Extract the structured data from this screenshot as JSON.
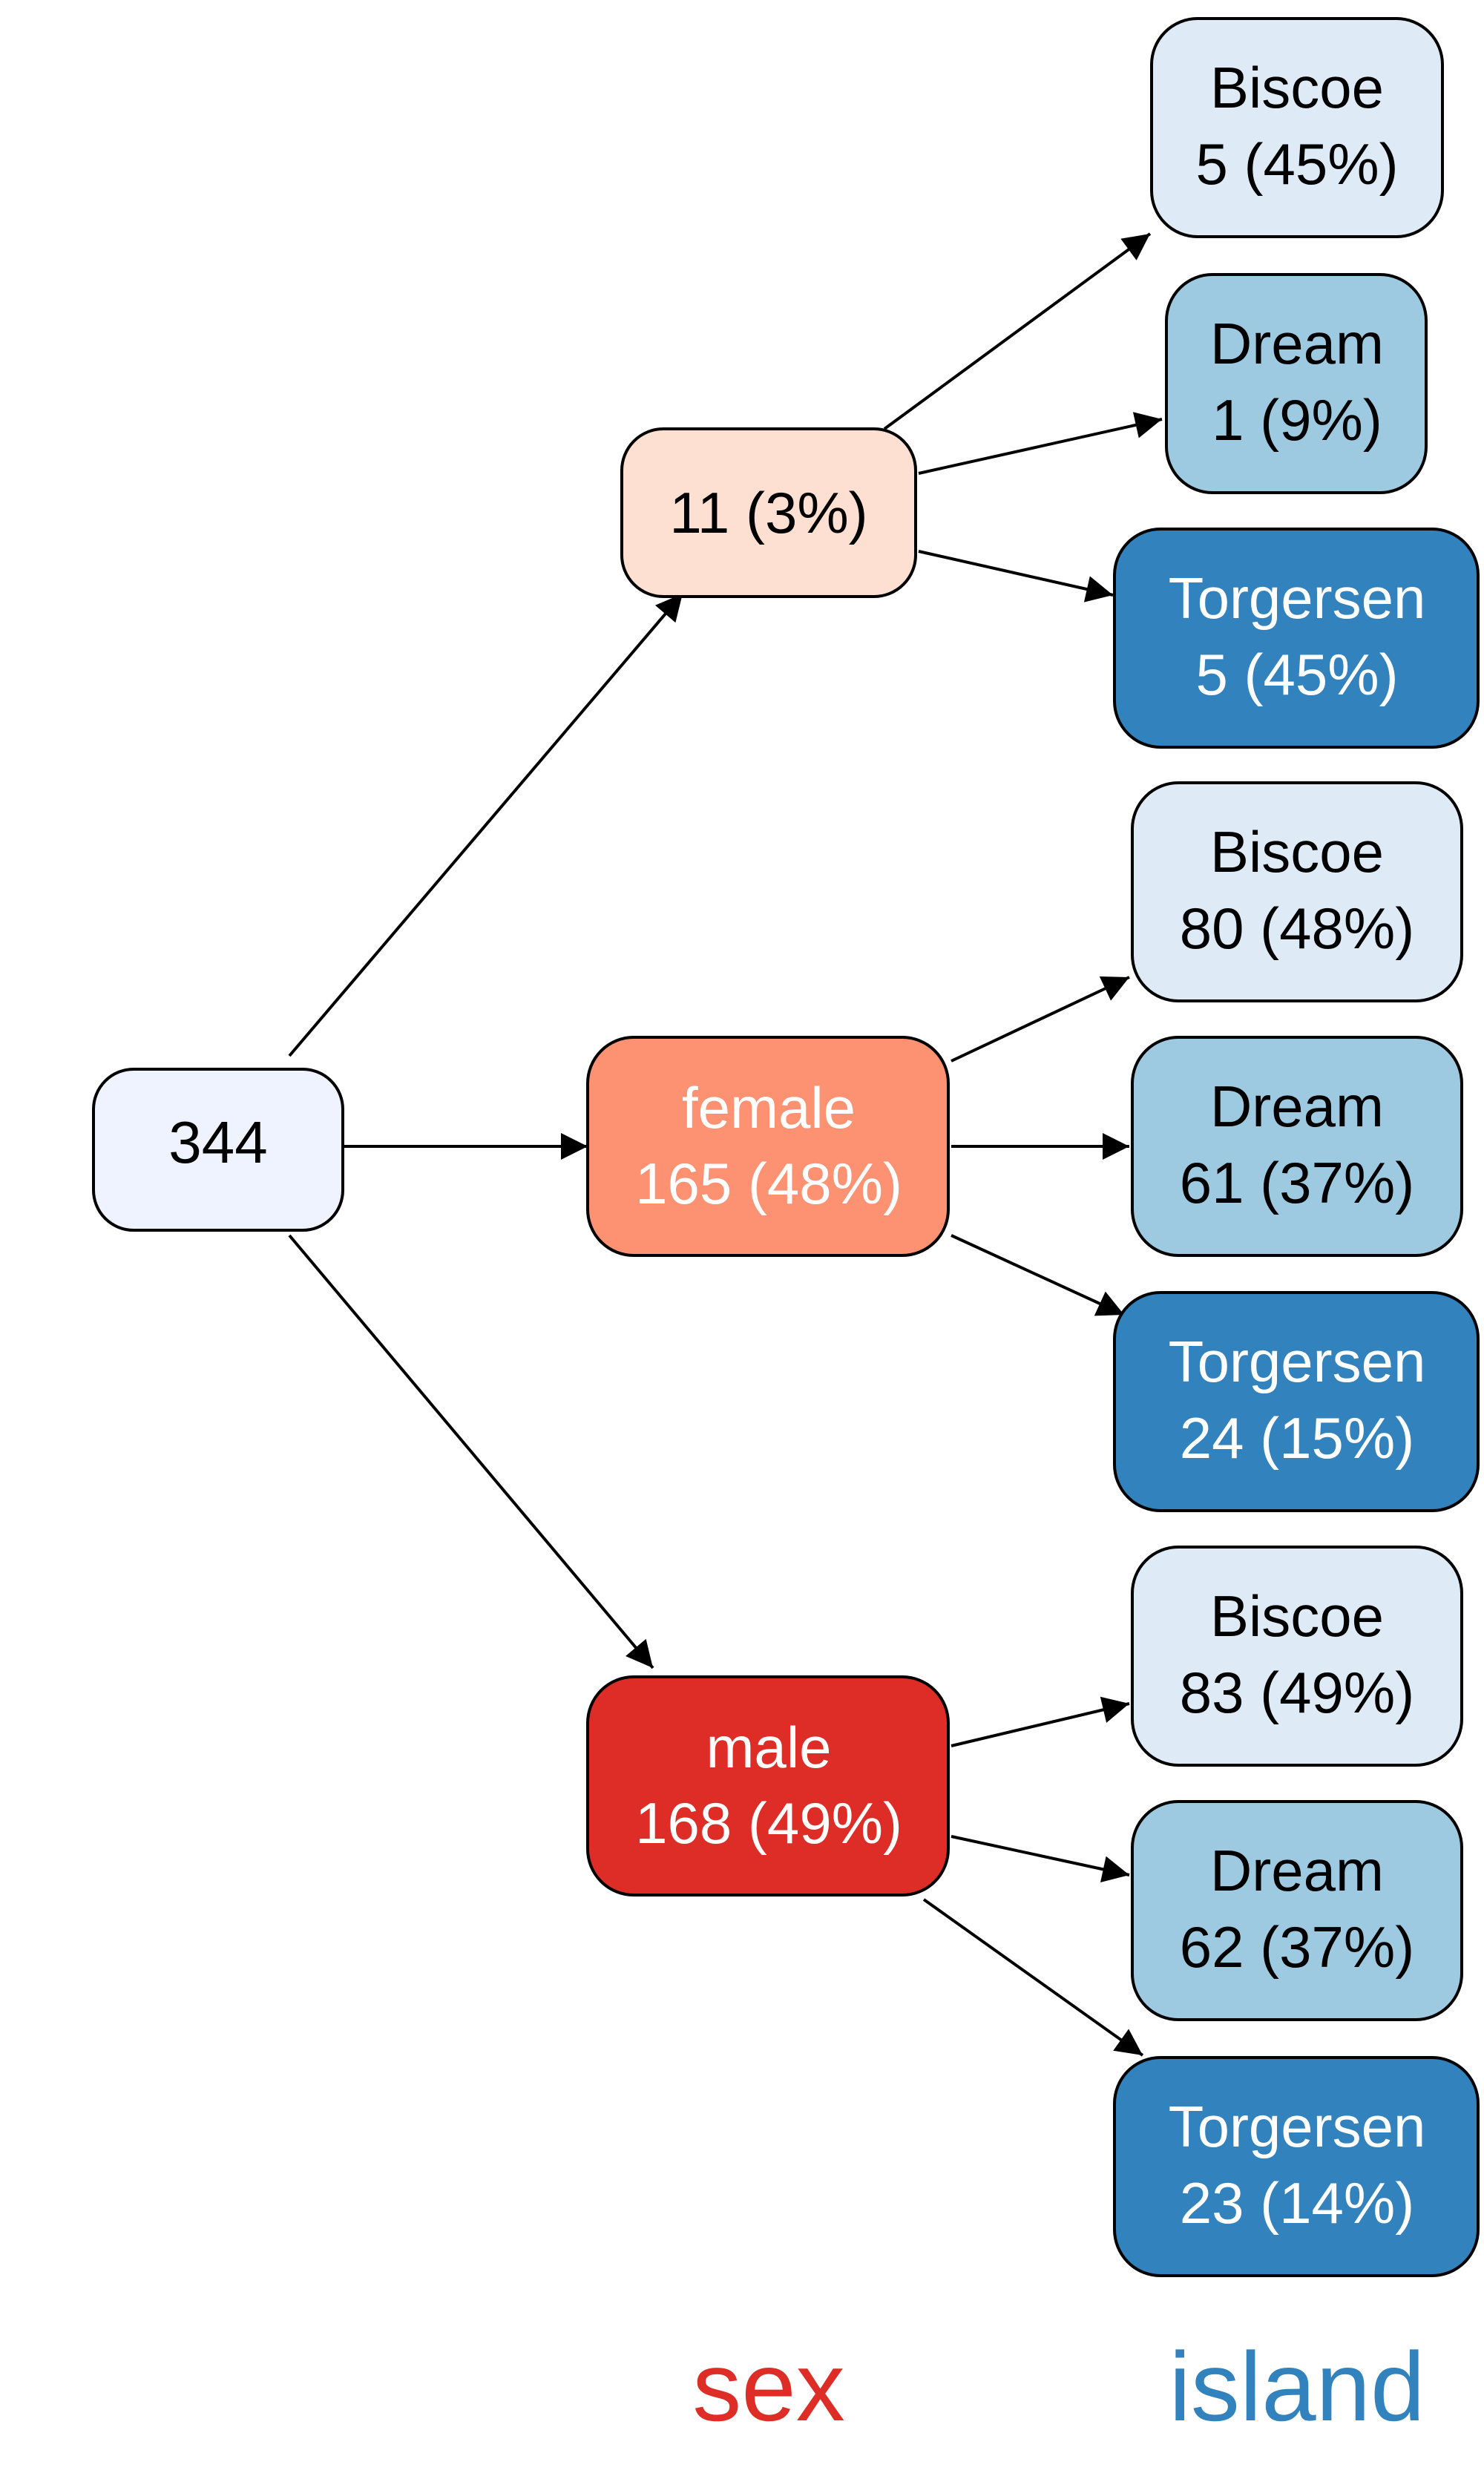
{
  "tree": {
    "root": {
      "label": "344",
      "fill": "#eff3ff",
      "text_color": "#000000"
    },
    "sex": [
      {
        "label": "11 (3%)",
        "fill": "#fee0d2",
        "text_color": "#000000",
        "children": [
          {
            "name": "Biscoe",
            "count": "5 (45%)",
            "fill": "#deebf7",
            "text_color": "#000000"
          },
          {
            "name": "Dream",
            "count": "1 (9%)",
            "fill": "#9ecae1",
            "text_color": "#000000"
          },
          {
            "name": "Torgersen",
            "count": "5 (45%)",
            "fill": "#3182bd",
            "text_color": "#ffffff"
          }
        ]
      },
      {
        "name": "female",
        "label": "165 (48%)",
        "fill": "#fc9272",
        "text_color": "#ffffff",
        "children": [
          {
            "name": "Biscoe",
            "count": "80 (48%)",
            "fill": "#deebf7",
            "text_color": "#000000"
          },
          {
            "name": "Dream",
            "count": "61 (37%)",
            "fill": "#9ecae1",
            "text_color": "#000000"
          },
          {
            "name": "Torgersen",
            "count": "24 (15%)",
            "fill": "#3182bd",
            "text_color": "#ffffff"
          }
        ]
      },
      {
        "name": "male",
        "label": "168 (49%)",
        "fill": "#de2d26",
        "text_color": "#ffffff",
        "children": [
          {
            "name": "Biscoe",
            "count": "83 (49%)",
            "fill": "#deebf7",
            "text_color": "#000000"
          },
          {
            "name": "Dream",
            "count": "62 (37%)",
            "fill": "#9ecae1",
            "text_color": "#000000"
          },
          {
            "name": "Torgersen",
            "count": "23 (14%)",
            "fill": "#3182bd",
            "text_color": "#ffffff"
          }
        ]
      }
    ]
  },
  "legend": {
    "sex": {
      "label": "sex",
      "color": "#de2d26"
    },
    "island": {
      "label": "island",
      "color": "#3182bd"
    }
  }
}
